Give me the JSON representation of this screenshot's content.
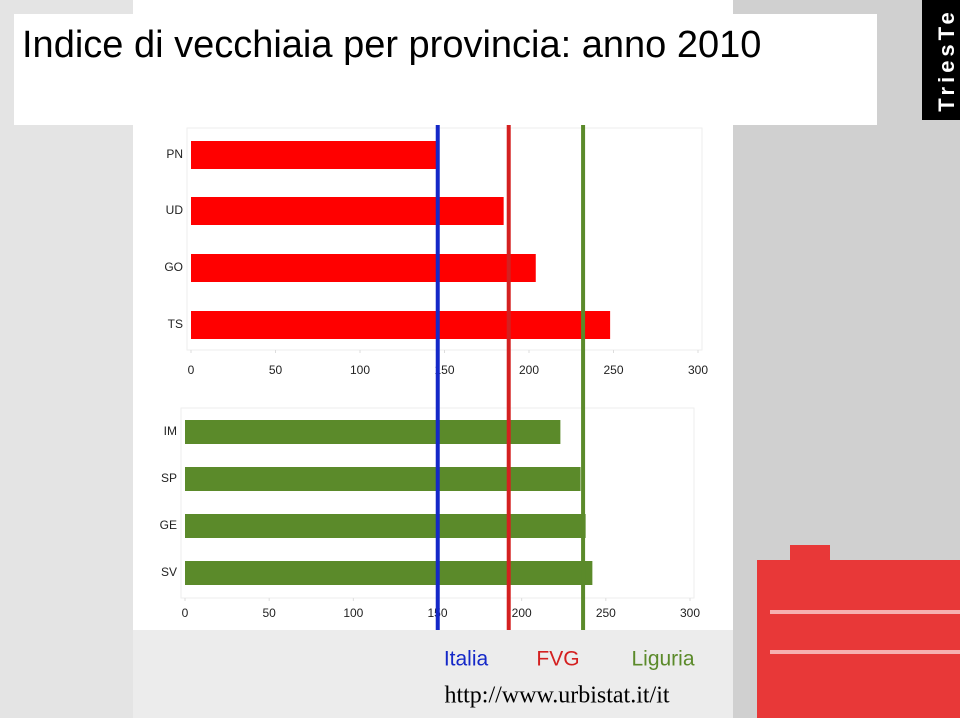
{
  "title": "Indice di vecchiaia per provincia: anno 2010",
  "logo": "TriesTe",
  "url": "http://www.urbistat.it/it",
  "chart_data": [
    {
      "type": "bar",
      "orientation": "horizontal",
      "categories": [
        "PN",
        "UD",
        "GO",
        "TS"
      ],
      "values": [
        147,
        185,
        204,
        248
      ],
      "color": "#ff0000",
      "xlim": [
        0,
        300
      ],
      "xticks": [
        0,
        50,
        100,
        150,
        200,
        250,
        300
      ],
      "reference_lines": [
        {
          "name": "Italia",
          "value": 146,
          "color": "#1428c8"
        },
        {
          "name": "FVG",
          "value": 188,
          "color": "#d42020"
        },
        {
          "name": "Liguria",
          "value": 232,
          "color": "#5b8a2a"
        }
      ]
    },
    {
      "type": "bar",
      "orientation": "horizontal",
      "categories": [
        "IM",
        "SP",
        "GE",
        "SV"
      ],
      "values": [
        223,
        235,
        238,
        242
      ],
      "color": "#5b8a2a",
      "xlim": [
        0,
        300
      ],
      "xticks": [
        0,
        50,
        100,
        150,
        200,
        250,
        300
      ]
    }
  ]
}
